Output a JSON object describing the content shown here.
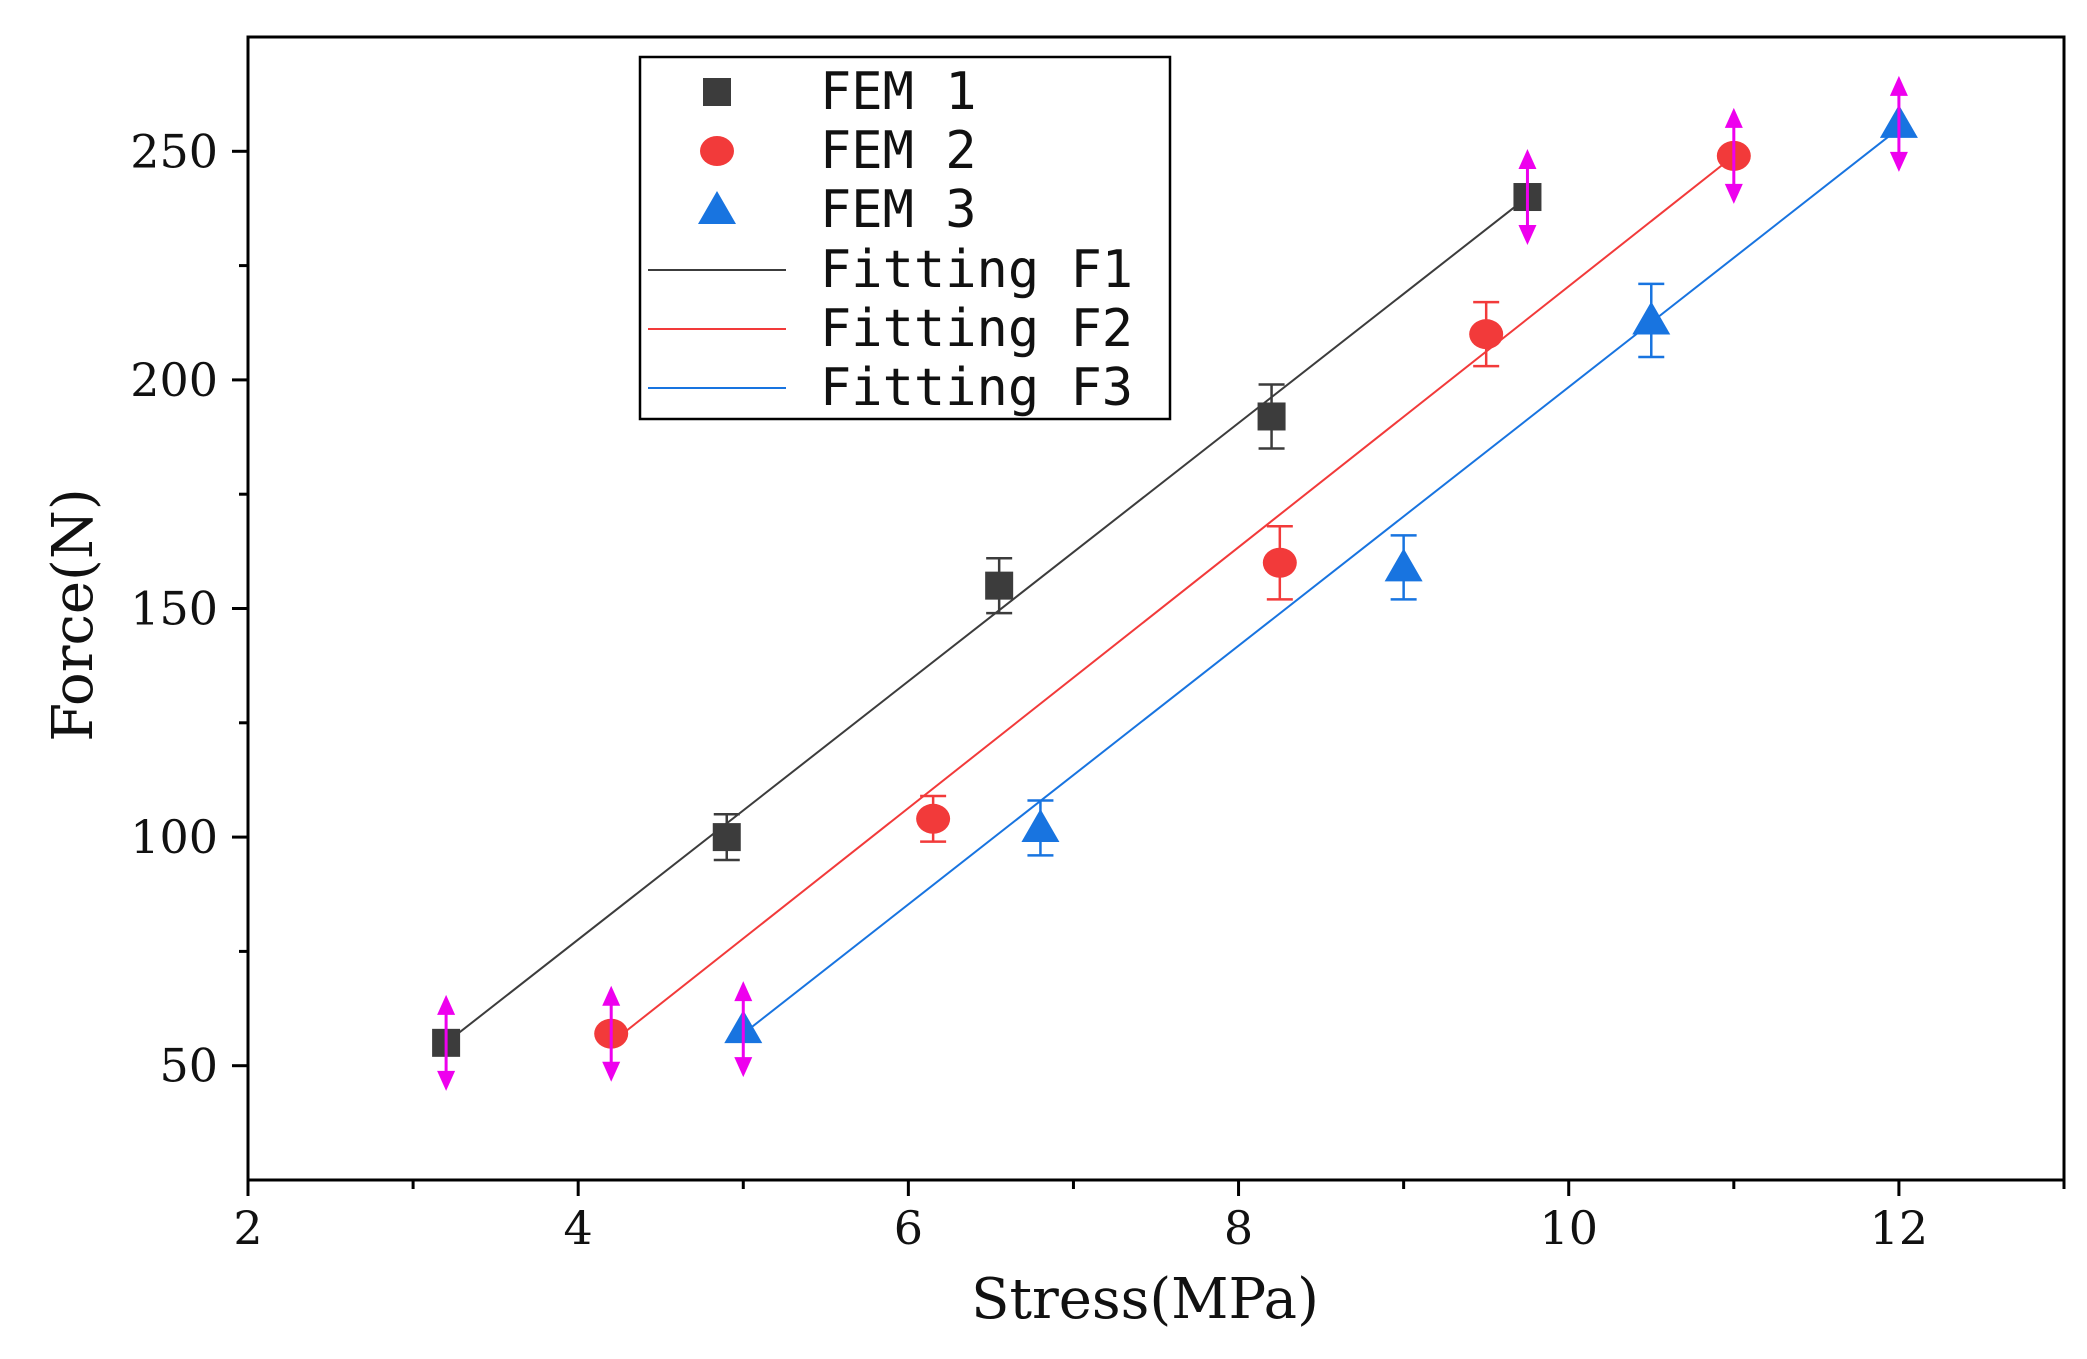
{
  "chart_data": {
    "type": "scatter",
    "xlabel": "Stress(MPa)",
    "ylabel": "Force(N)",
    "xlim": [
      2,
      13
    ],
    "ylim": [
      25,
      275
    ],
    "xticks": [
      2,
      4,
      6,
      8,
      10,
      12
    ],
    "xminor": [
      3,
      5,
      7,
      9,
      11,
      13
    ],
    "yticks": [
      50,
      100,
      150,
      200,
      250
    ],
    "yminor": [
      75,
      125,
      175,
      225
    ],
    "grid": false,
    "legend_position": "top-center",
    "series": [
      {
        "name": "FEM 1",
        "marker": "square",
        "color": "#3c3c3c",
        "x": [
          3.2,
          4.9,
          6.55,
          8.2,
          9.75
        ],
        "y": [
          55,
          100,
          155,
          192,
          240
        ],
        "err": [
          null,
          5,
          6,
          7,
          null
        ],
        "arrow": [
          true,
          false,
          false,
          false,
          true
        ]
      },
      {
        "name": "FEM 2",
        "marker": "circle",
        "color": "#f23a3a",
        "x": [
          4.2,
          6.15,
          8.25,
          9.5,
          11.0
        ],
        "y": [
          57,
          104,
          160,
          210,
          249
        ],
        "err": [
          null,
          5,
          8,
          7,
          null
        ],
        "arrow": [
          true,
          false,
          false,
          false,
          true
        ]
      },
      {
        "name": "FEM 3",
        "marker": "triangle",
        "color": "#1874e0",
        "x": [
          5.0,
          6.8,
          9.0,
          10.5,
          12.0
        ],
        "y": [
          58,
          102,
          159,
          213,
          256
        ],
        "err": [
          null,
          6,
          7,
          8,
          null
        ],
        "arrow": [
          true,
          false,
          false,
          false,
          true
        ]
      }
    ],
    "fit_lines": [
      {
        "name": "Fitting F1",
        "color": "#3c3c3c",
        "x": [
          3.2,
          9.75
        ],
        "y": [
          55,
          240
        ]
      },
      {
        "name": "Fitting F2",
        "color": "#f23a3a",
        "x": [
          4.2,
          11.0
        ],
        "y": [
          55,
          249
        ]
      },
      {
        "name": "Fitting F3",
        "color": "#1874e0",
        "x": [
          5.0,
          12.0
        ],
        "y": [
          57,
          255
        ]
      }
    ],
    "arrow_color": "#ee00ee"
  }
}
